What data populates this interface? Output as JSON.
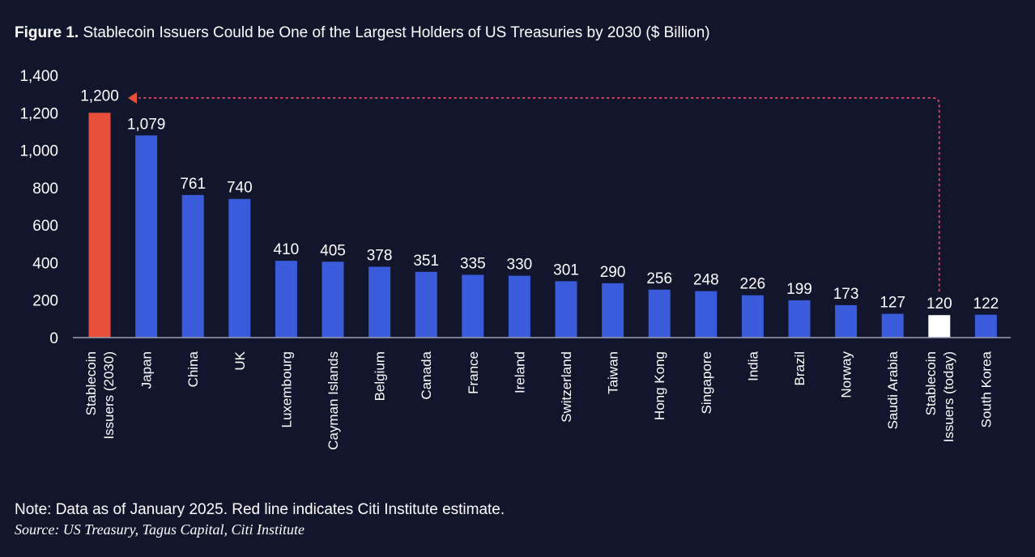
{
  "title_prefix": "Figure 1.",
  "title": "Stablecoin Issuers Could be One of the Largest Holders of US Treasuries by 2030 ($ Billion)",
  "note": "Note: Data as of January 2025. Red line indicates Citi Institute estimate.",
  "source": "Source: US Treasury, Tagus Capital, Citi Institute",
  "colors": {
    "background": "#12162d",
    "bar": "#3a5bdc",
    "highlight": "#e84f3b",
    "today": "#ffffff",
    "estimate_line": "#d9436b",
    "axis": "#9aa0b0"
  },
  "chart_data": {
    "type": "bar",
    "title": "Stablecoin Issuers Could be One of the Largest Holders of US Treasuries by 2030 ($ Billion)",
    "categories": [
      "Stablecoin Issuers (2030)",
      "Japan",
      "China",
      "UK",
      "Luxembourg",
      "Cayman Islands",
      "Belgium",
      "Canada",
      "France",
      "Ireland",
      "Switzerland",
      "Taiwan",
      "Hong Kong",
      "Singapore",
      "India",
      "Brazil",
      "Norway",
      "Saudi Arabia",
      "Stablecoin Issuers (today)",
      "South Korea"
    ],
    "category_lines": [
      [
        "Stablecoin",
        "Issuers (2030)"
      ],
      [
        "Japan"
      ],
      [
        "China"
      ],
      [
        "UK"
      ],
      [
        "Luxembourg"
      ],
      [
        "Cayman Islands"
      ],
      [
        "Belgium"
      ],
      [
        "Canada"
      ],
      [
        "France"
      ],
      [
        "Ireland"
      ],
      [
        "Switzerland"
      ],
      [
        "Taiwan"
      ],
      [
        "Hong Kong"
      ],
      [
        "Singapore"
      ],
      [
        "India"
      ],
      [
        "Brazil"
      ],
      [
        "Norway"
      ],
      [
        "Saudi Arabia"
      ],
      [
        "Stablecoin",
        "Issuers (today)"
      ],
      [
        "South Korea"
      ]
    ],
    "values": [
      1200,
      1079,
      761,
      740,
      410,
      405,
      378,
      351,
      335,
      330,
      301,
      290,
      256,
      248,
      226,
      199,
      173,
      127,
      120,
      122
    ],
    "data_labels": [
      "1,200",
      "1,079",
      "761",
      "740",
      "410",
      "405",
      "378",
      "351",
      "335",
      "330",
      "301",
      "290",
      "256",
      "248",
      "226",
      "199",
      "173",
      "127",
      "120",
      "122"
    ],
    "bar_colors": [
      "highlight",
      "bar",
      "bar",
      "bar",
      "bar",
      "bar",
      "bar",
      "bar",
      "bar",
      "bar",
      "bar",
      "bar",
      "bar",
      "bar",
      "bar",
      "bar",
      "bar",
      "bar",
      "today",
      "bar"
    ],
    "ylim": [
      0,
      1400
    ],
    "yticks": [
      0,
      200,
      400,
      600,
      800,
      1000,
      1200,
      1400
    ],
    "ytick_labels": [
      "0",
      "200",
      "400",
      "600",
      "800",
      "1,000",
      "1,200",
      "1,400"
    ],
    "grid": false,
    "annotation": "Dotted red arrow from Stablecoin Issuers (today) to Stablecoin Issuers (2030)"
  }
}
